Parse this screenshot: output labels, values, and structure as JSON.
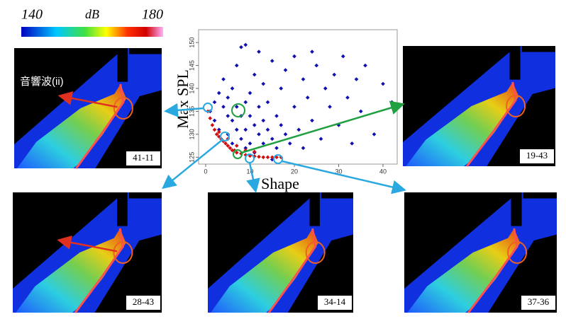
{
  "chart_data": {
    "type": "scatter",
    "xlabel": "Shape",
    "ylabel": "Max SPL",
    "xlim": [
      -1.6,
      43.2
    ],
    "ylim": [
      123.5,
      152.8
    ],
    "xticks": [
      0,
      10,
      20,
      30,
      40
    ],
    "yticks": [
      125,
      130,
      135,
      140,
      145,
      150
    ],
    "series": [
      {
        "color": "#1010b0",
        "x": [
          1,
          2,
          2,
          3,
          3,
          4,
          4,
          5,
          5,
          5,
          6,
          6,
          6,
          7,
          7,
          7,
          8,
          8,
          8,
          9,
          9,
          9,
          10,
          10,
          10,
          11,
          11,
          11,
          12,
          12,
          12,
          13,
          13,
          13,
          14,
          14,
          15,
          15,
          16,
          16,
          17,
          17,
          18,
          18,
          19,
          20,
          20,
          21,
          22,
          22,
          23,
          24,
          25,
          26,
          27,
          28,
          29,
          30,
          31,
          32,
          33,
          34,
          35,
          36,
          38,
          40,
          42,
          15,
          9,
          24
        ],
        "values": [
          135,
          137,
          133,
          139,
          131,
          136,
          142,
          134,
          138,
          130,
          133,
          140,
          128,
          136,
          131,
          145,
          134,
          129,
          149,
          137,
          131,
          127,
          134,
          139,
          128,
          132,
          143,
          126,
          136,
          130,
          148,
          133,
          128,
          141,
          131,
          137,
          129,
          146,
          134,
          127,
          132,
          140,
          130,
          144,
          128,
          136,
          147,
          131,
          142,
          127,
          138,
          133,
          145,
          129,
          140,
          136,
          143,
          132,
          147,
          138,
          128,
          142,
          135,
          145,
          130,
          141,
          137,
          124.5,
          149.5,
          148
        ]
      },
      {
        "color": "#d01010",
        "x": [
          0.5,
          1,
          1.5,
          2,
          2.5,
          3,
          3.5,
          4,
          4.5,
          5,
          5.5,
          6,
          6.5,
          7,
          8,
          9,
          10,
          11,
          12,
          13,
          14,
          15,
          16,
          17,
          3,
          5,
          7,
          9,
          11
        ],
        "values": [
          135,
          133.5,
          132,
          131,
          130,
          129.5,
          129,
          128.5,
          128,
          127.5,
          127,
          126.5,
          126.5,
          126,
          125.8,
          125.5,
          125.3,
          125.2,
          125.1,
          125,
          125,
          125,
          125,
          125,
          130.5,
          129,
          127.5,
          126.5,
          126.2
        ]
      }
    ]
  },
  "colorbar": {
    "min_label": "140",
    "unit": "dB",
    "max_label": "180"
  },
  "annotation": "音響波(ii)",
  "panels": [
    "41-11",
    "19-43",
    "28-43",
    "34-14",
    "37-36"
  ]
}
